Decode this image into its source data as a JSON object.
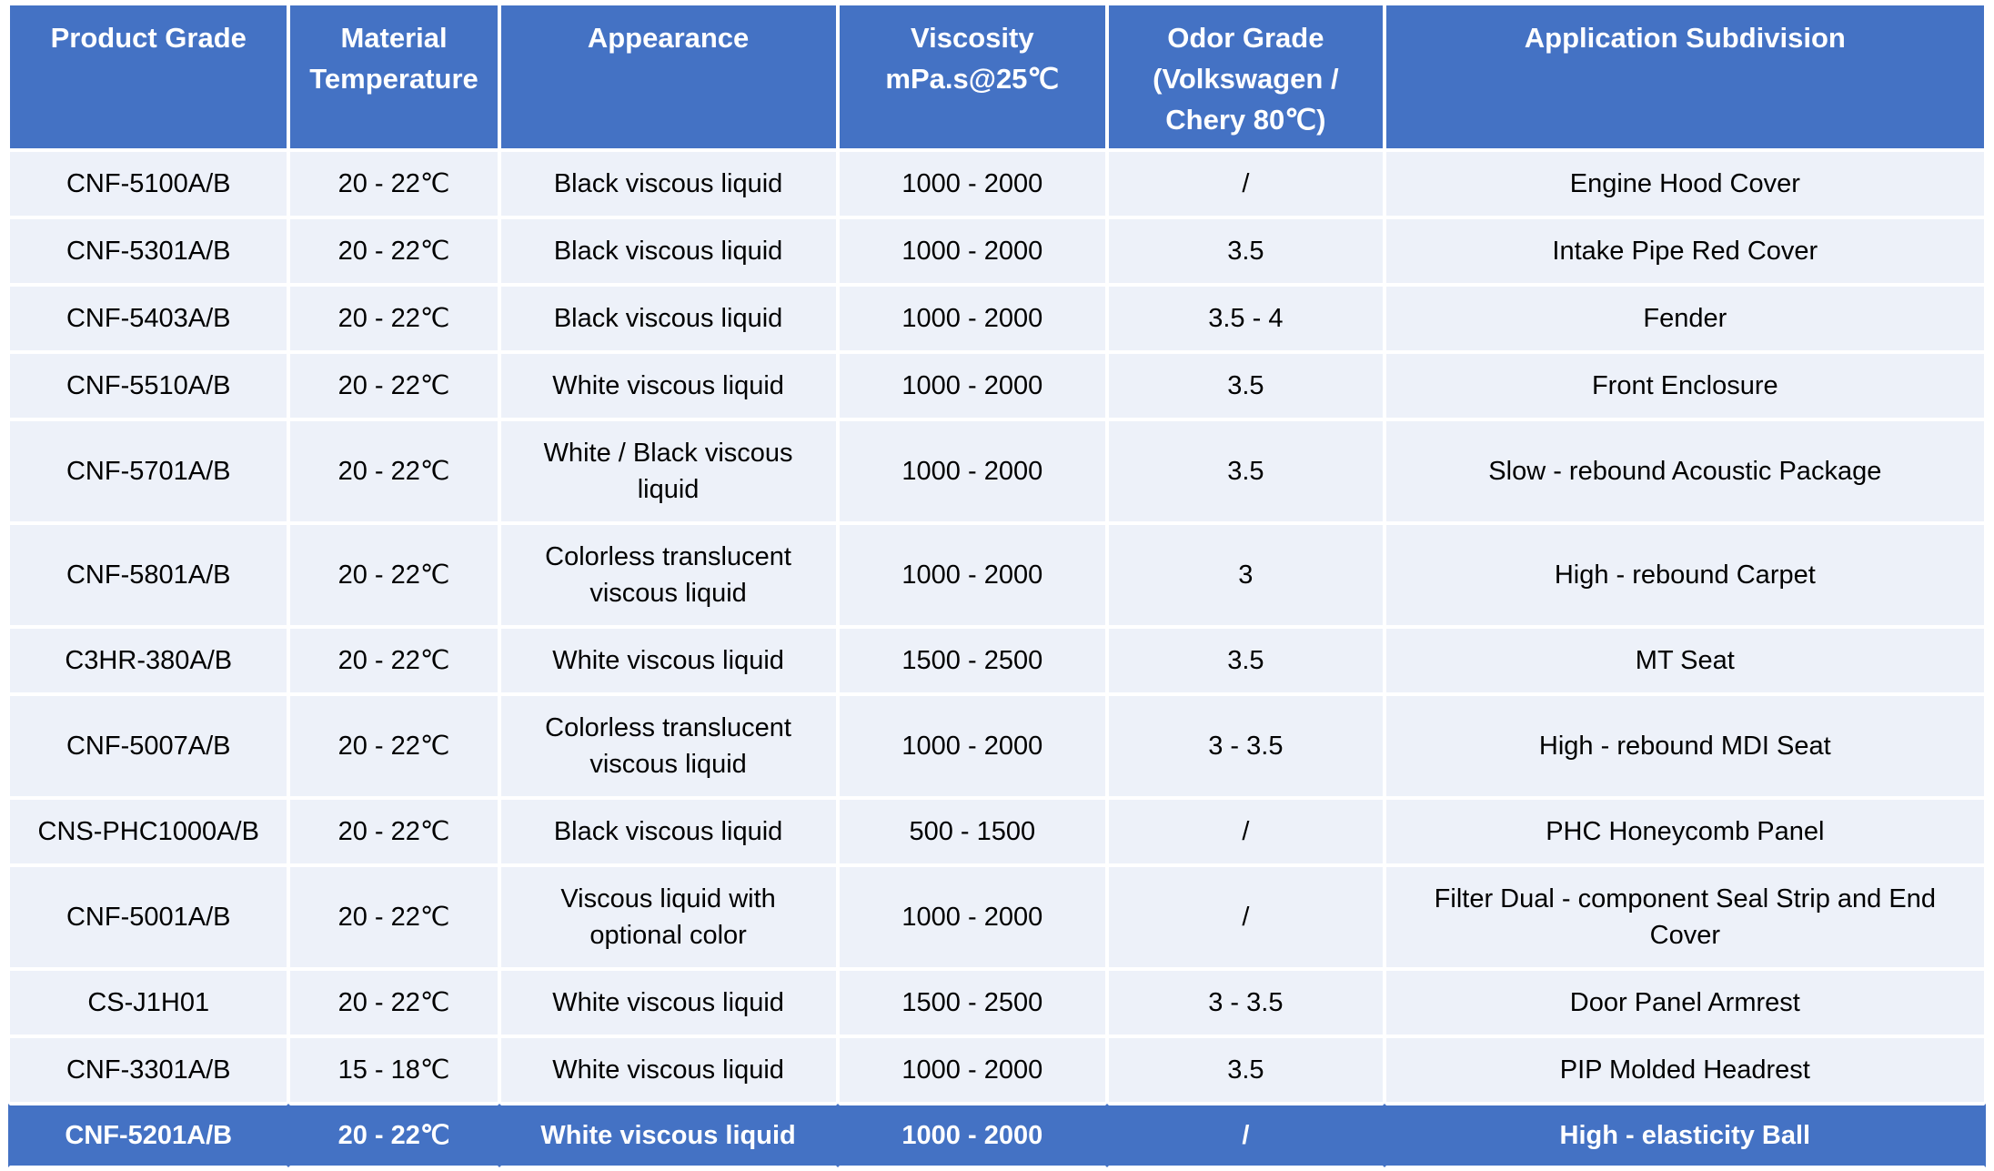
{
  "colors": {
    "accent": "#4472C4",
    "row_background": "#EDF1F9",
    "header_text": "#FFFFFF",
    "body_text": "#000000",
    "gridline": "#FFFFFF"
  },
  "table": {
    "columns": [
      "Product Grade",
      "Material\nTemperature",
      "Appearance",
      "Viscosity\nmPa.s@25℃",
      "Odor Grade\n(Volkswagen /\nChery 80℃)",
      "Application Subdivision"
    ],
    "rows": [
      {
        "highlight": false,
        "cells": [
          "CNF-5100A/B",
          "20 - 22℃",
          "Black viscous liquid",
          "1000 - 2000",
          "/",
          "Engine Hood Cover"
        ]
      },
      {
        "highlight": false,
        "cells": [
          "CNF-5301A/B",
          "20 - 22℃",
          "Black viscous liquid",
          "1000 - 2000",
          "3.5",
          "Intake Pipe Red Cover"
        ]
      },
      {
        "highlight": false,
        "cells": [
          "CNF-5403A/B",
          "20 - 22℃",
          "Black viscous liquid",
          "1000 - 2000",
          "3.5 - 4",
          "Fender"
        ]
      },
      {
        "highlight": false,
        "cells": [
          "CNF-5510A/B",
          "20 - 22℃",
          "White viscous liquid",
          "1000 - 2000",
          "3.5",
          "Front Enclosure"
        ]
      },
      {
        "highlight": false,
        "cells": [
          "CNF-5701A/B",
          "20 - 22℃",
          "White / Black viscous liquid",
          "1000 - 2000",
          "3.5",
          "Slow - rebound Acoustic Package"
        ]
      },
      {
        "highlight": false,
        "cells": [
          "CNF-5801A/B",
          "20 - 22℃",
          "Colorless translucent viscous liquid",
          "1000 - 2000",
          "3",
          "High - rebound Carpet"
        ]
      },
      {
        "highlight": false,
        "cells": [
          "C3HR-380A/B",
          "20 - 22℃",
          "White viscous liquid",
          "1500 - 2500",
          "3.5",
          "MT Seat"
        ]
      },
      {
        "highlight": false,
        "cells": [
          "CNF-5007A/B",
          "20 - 22℃",
          "Colorless translucent viscous liquid",
          "1000 - 2000",
          "3 - 3.5",
          "High - rebound MDI Seat"
        ]
      },
      {
        "highlight": false,
        "cells": [
          "CNS-PHC1000A/B",
          "20 - 22℃",
          "Black viscous liquid",
          "500 - 1500",
          "/",
          "PHC Honeycomb Panel"
        ]
      },
      {
        "highlight": false,
        "cells": [
          "CNF-5001A/B",
          "20 - 22℃",
          "Viscous liquid with optional color",
          "1000 - 2000",
          "/",
          "Filter Dual - component Seal Strip and End Cover"
        ]
      },
      {
        "highlight": false,
        "cells": [
          "CS-J1H01",
          "20 - 22℃",
          "White viscous liquid",
          "1500 - 2500",
          "3 - 3.5",
          "Door Panel Armrest"
        ]
      },
      {
        "highlight": false,
        "cells": [
          "CNF-3301A/B",
          "15 - 18℃",
          "White viscous liquid",
          "1000 - 2000",
          "3.5",
          "PIP Molded Headrest"
        ]
      },
      {
        "highlight": true,
        "cells": [
          "CNF-5201A/B",
          "20 - 22℃",
          "White viscous liquid",
          "1000 - 2000",
          "/",
          "High - elasticity Ball"
        ]
      }
    ]
  }
}
